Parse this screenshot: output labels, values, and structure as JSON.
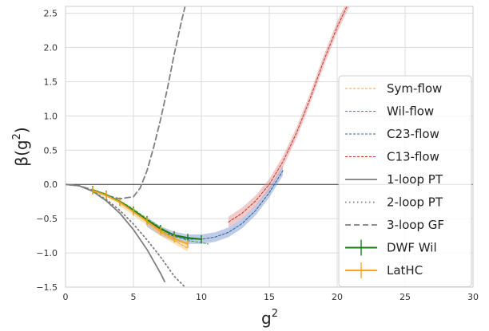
{
  "chart_data": {
    "type": "line",
    "title": "",
    "xlabel": "g",
    "xlabel_sup": "2",
    "ylabel": "β(g",
    "ylabel_sup": "2",
    "ylabel_close": ")",
    "xlim": [
      0,
      30
    ],
    "ylim": [
      -1.5,
      2.6
    ],
    "xticks": [
      0,
      5,
      10,
      15,
      20,
      25,
      30
    ],
    "yticks": [
      -1.5,
      -1.0,
      -0.5,
      0.0,
      0.5,
      1.0,
      1.5,
      2.0,
      2.5
    ],
    "ytick_labels": [
      "−1.5",
      "−1.0",
      "−0.5",
      "0.0",
      "0.5",
      "1.0",
      "1.5",
      "2.0",
      "2.5"
    ],
    "grid": true,
    "legend_position": "right",
    "zero_line": true,
    "series": [
      {
        "name": "Sym-flow",
        "style": "dashed-thin",
        "color": "#f5a623",
        "x": [
          2,
          3,
          4,
          5,
          6,
          7,
          8,
          9
        ],
        "y": [
          -0.1,
          -0.17,
          -0.27,
          -0.4,
          -0.55,
          -0.7,
          -0.82,
          -0.93
        ]
      },
      {
        "name": "Wil-flow",
        "style": "dashed-thin",
        "color": "#3aa63a",
        "x": [
          2,
          3,
          4,
          5,
          6,
          7,
          8,
          9,
          10,
          10.5
        ],
        "y": [
          -0.09,
          -0.15,
          -0.24,
          -0.36,
          -0.5,
          -0.63,
          -0.74,
          -0.82,
          -0.85,
          -0.87
        ]
      },
      {
        "name": "C23-flow",
        "style": "dashed-thin",
        "color": "#2c6090",
        "x": [
          6,
          7,
          8,
          9,
          10,
          11,
          12,
          13,
          14,
          15,
          16
        ],
        "y": [
          -0.55,
          -0.68,
          -0.76,
          -0.8,
          -0.8,
          -0.77,
          -0.7,
          -0.57,
          -0.38,
          -0.12,
          0.2
        ]
      },
      {
        "name": "C13-flow",
        "style": "dashed-thin",
        "color": "#c0392b",
        "x": [
          12,
          13,
          14,
          15,
          16,
          17,
          18,
          19,
          20,
          21
        ],
        "y": [
          -0.55,
          -0.42,
          -0.24,
          0.0,
          0.33,
          0.75,
          1.25,
          1.8,
          2.3,
          2.72
        ]
      },
      {
        "name": "1-loop PT",
        "style": "solid",
        "color": "#7f7f7f",
        "x": [
          0,
          1,
          2,
          3,
          4,
          5,
          6,
          7,
          7.3
        ],
        "y": [
          0,
          -0.02,
          -0.1,
          -0.24,
          -0.42,
          -0.66,
          -0.95,
          -1.3,
          -1.42
        ]
      },
      {
        "name": "2-loop PT",
        "style": "dotted",
        "color": "#7f7f7f",
        "x": [
          0,
          1,
          2,
          3,
          4,
          5,
          6,
          7,
          8,
          8.8
        ],
        "y": [
          0,
          -0.02,
          -0.1,
          -0.22,
          -0.38,
          -0.58,
          -0.81,
          -1.06,
          -1.34,
          -1.5
        ]
      },
      {
        "name": "3-loop GF",
        "style": "dashed",
        "color": "#7f7f7f",
        "x": [
          0,
          1,
          2,
          3,
          4,
          5,
          5.5,
          6,
          6.5,
          7,
          7.5,
          8,
          8.5,
          8.8
        ],
        "y": [
          0,
          -0.02,
          -0.08,
          -0.16,
          -0.21,
          -0.18,
          -0.05,
          0.2,
          0.55,
          0.95,
          1.4,
          1.9,
          2.35,
          2.6
        ]
      },
      {
        "name": "DWF Wil",
        "style": "errorbar",
        "color": "#1a7a1a",
        "x": [
          2,
          3,
          4,
          5,
          6,
          7,
          8,
          9,
          10
        ],
        "y": [
          -0.08,
          -0.15,
          -0.25,
          -0.38,
          -0.52,
          -0.65,
          -0.74,
          -0.78,
          -0.8
        ]
      },
      {
        "name": "LatHC",
        "style": "errorbar",
        "color": "#f5a623",
        "x": [
          2,
          3,
          4,
          5,
          6,
          7,
          8,
          9
        ],
        "y": [
          -0.09,
          -0.16,
          -0.26,
          -0.4,
          -0.54,
          -0.68,
          -0.79,
          -0.87
        ]
      }
    ],
    "bands": [
      {
        "name": "C23-flow",
        "color": "#6f8fd0",
        "x": [
          6,
          7,
          8,
          9,
          10,
          11,
          12,
          13,
          14,
          15,
          16
        ],
        "y": [
          -0.55,
          -0.68,
          -0.76,
          -0.8,
          -0.8,
          -0.77,
          -0.7,
          -0.57,
          -0.38,
          -0.12,
          0.2
        ],
        "half_width": 0.07
      },
      {
        "name": "C13-flow",
        "color": "#e08a8a",
        "x": [
          12,
          13,
          14,
          15,
          16,
          17,
          18,
          19,
          20,
          21
        ],
        "y": [
          -0.55,
          -0.42,
          -0.24,
          0.0,
          0.33,
          0.75,
          1.25,
          1.8,
          2.3,
          2.72
        ],
        "half_width": 0.08
      },
      {
        "name": "Sym-flow",
        "color": "#f5c070",
        "x": [
          4,
          5,
          6,
          7,
          8,
          9
        ],
        "y": [
          -0.27,
          -0.4,
          -0.55,
          -0.7,
          -0.82,
          -0.93
        ],
        "half_width": 0.05
      }
    ]
  }
}
